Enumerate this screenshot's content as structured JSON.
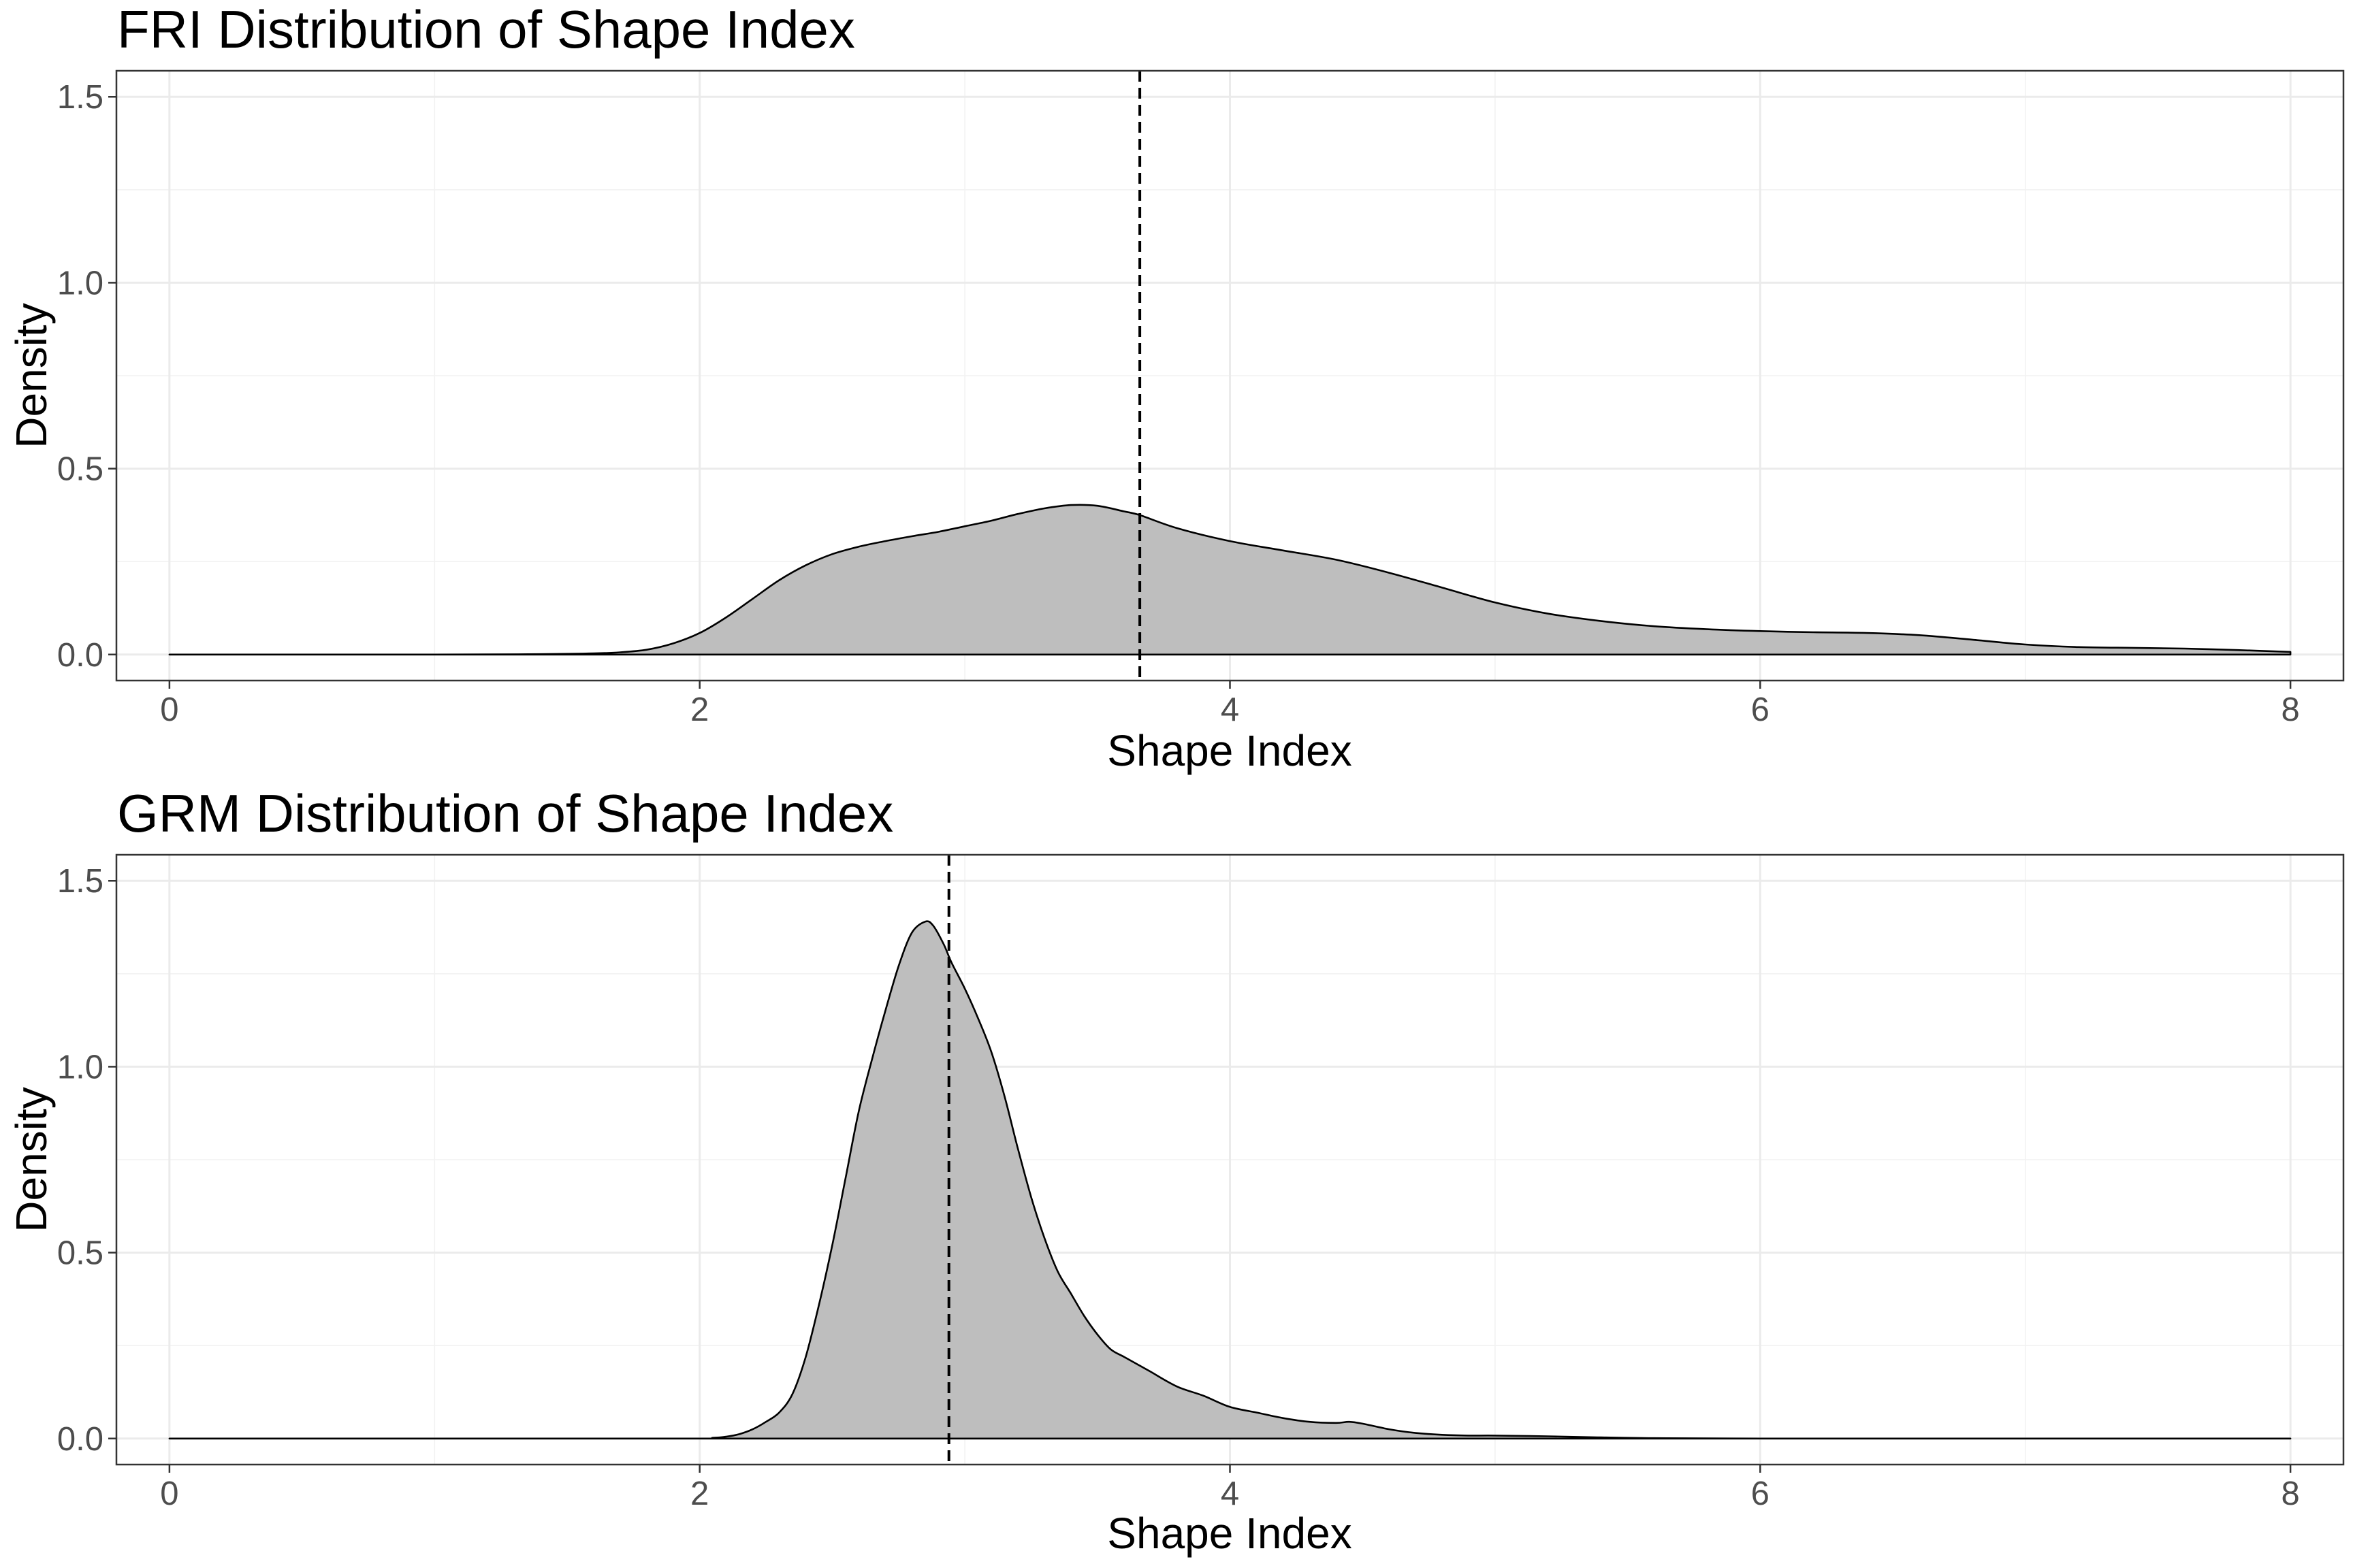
{
  "chart_data": [
    {
      "type": "area",
      "title": "FRI Distribution of Shape Index",
      "xlabel": "Shape Index",
      "ylabel": "Density",
      "xlim": [
        -0.2,
        8.2
      ],
      "ylim": [
        -0.07,
        1.57
      ],
      "x_ticks": [
        0,
        2,
        4,
        6,
        8
      ],
      "x_tick_labels": [
        "0",
        "2",
        "4",
        "6",
        "8"
      ],
      "y_ticks": [
        0.0,
        0.5,
        1.0,
        1.5
      ],
      "y_tick_labels": [
        "0.0",
        "0.5",
        "1.0",
        "1.5"
      ],
      "grid": true,
      "fill_color": "#bebebe",
      "vline_x": 3.66,
      "series": [
        {
          "x": [
            0,
            1.0,
            1.4,
            1.6,
            1.7,
            1.8,
            1.9,
            2.0,
            2.1,
            2.2,
            2.3,
            2.4,
            2.5,
            2.6,
            2.7,
            2.8,
            2.9,
            3.0,
            3.1,
            3.2,
            3.3,
            3.4,
            3.5,
            3.6,
            3.66,
            3.8,
            4.0,
            4.2,
            4.4,
            4.6,
            4.8,
            5.0,
            5.2,
            5.4,
            5.6,
            5.8,
            6.0,
            6.2,
            6.4,
            6.6,
            6.8,
            7.0,
            7.2,
            7.4,
            7.6,
            7.8,
            8.0
          ],
          "y": [
            0.0,
            0.0,
            0.001,
            0.003,
            0.006,
            0.013,
            0.03,
            0.058,
            0.1,
            0.15,
            0.2,
            0.24,
            0.27,
            0.29,
            0.305,
            0.318,
            0.33,
            0.345,
            0.36,
            0.378,
            0.393,
            0.402,
            0.4,
            0.385,
            0.375,
            0.34,
            0.305,
            0.28,
            0.255,
            0.22,
            0.18,
            0.14,
            0.11,
            0.09,
            0.076,
            0.068,
            0.063,
            0.06,
            0.058,
            0.052,
            0.04,
            0.027,
            0.02,
            0.018,
            0.016,
            0.012,
            0.007
          ]
        }
      ]
    },
    {
      "type": "area",
      "title": "GRM Distribution of Shape Index",
      "xlabel": "Shape Index",
      "ylabel": "Density",
      "xlim": [
        -0.2,
        8.2
      ],
      "ylim": [
        -0.07,
        1.57
      ],
      "x_ticks": [
        0,
        2,
        4,
        6,
        8
      ],
      "x_tick_labels": [
        "0",
        "2",
        "4",
        "6",
        "8"
      ],
      "y_ticks": [
        0.0,
        0.5,
        1.0,
        1.5
      ],
      "y_tick_labels": [
        "0.0",
        "0.5",
        "1.0",
        "1.5"
      ],
      "grid": true,
      "fill_color": "#bebebe",
      "vline_x": 2.94,
      "series": [
        {
          "x": [
            0,
            1.9,
            2.05,
            2.1,
            2.15,
            2.2,
            2.25,
            2.3,
            2.35,
            2.4,
            2.45,
            2.5,
            2.55,
            2.6,
            2.65,
            2.7,
            2.75,
            2.8,
            2.85,
            2.88,
            2.92,
            2.95,
            3.0,
            3.05,
            3.1,
            3.15,
            3.2,
            3.25,
            3.3,
            3.35,
            3.4,
            3.45,
            3.5,
            3.55,
            3.6,
            3.65,
            3.7,
            3.8,
            3.9,
            4.0,
            4.1,
            4.2,
            4.3,
            4.4,
            4.45,
            4.5,
            4.6,
            4.7,
            4.8,
            4.9,
            5.0,
            5.2,
            5.4,
            5.6,
            6.0,
            7.0,
            8.0
          ],
          "y": [
            0.0,
            0.0,
            0.002,
            0.005,
            0.012,
            0.025,
            0.045,
            0.07,
            0.12,
            0.22,
            0.36,
            0.52,
            0.7,
            0.88,
            1.02,
            1.15,
            1.27,
            1.36,
            1.39,
            1.38,
            1.33,
            1.28,
            1.21,
            1.13,
            1.04,
            0.92,
            0.78,
            0.65,
            0.54,
            0.45,
            0.39,
            0.33,
            0.28,
            0.24,
            0.22,
            0.2,
            0.18,
            0.14,
            0.115,
            0.085,
            0.07,
            0.055,
            0.045,
            0.042,
            0.045,
            0.04,
            0.025,
            0.015,
            0.01,
            0.008,
            0.008,
            0.006,
            0.003,
            0.001,
            0.0,
            0.0,
            0.0
          ]
        }
      ]
    }
  ]
}
